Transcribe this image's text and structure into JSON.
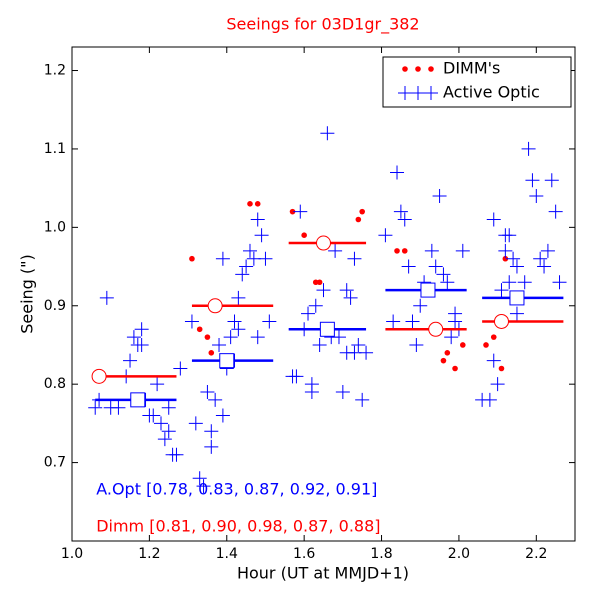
{
  "chart_data": {
    "type": "scatter",
    "title": "Seeings for 03D1gr_382",
    "title_color": "red",
    "xlabel": "Hour (UT at MMJD+1)",
    "ylabel": "Seeing (\")",
    "xlim": [
      1.0,
      2.3
    ],
    "ylim": [
      0.6,
      1.23
    ],
    "xticks": [
      {
        "value": 1,
        "label": "1.0"
      },
      1.2,
      1.4,
      1.6,
      1.8,
      {
        "value": 2,
        "label": "2.0"
      },
      2.2
    ],
    "yticks": [
      0.7,
      0.8,
      0.9,
      {
        "value": 1,
        "label": "1.0"
      },
      1.1,
      1.2
    ],
    "legend": "upper right",
    "series": [
      {
        "name": "DIMM's",
        "color": "red",
        "marker": "dot",
        "x": [
          1.07,
          1.31,
          1.33,
          1.35,
          1.36,
          1.37,
          1.46,
          1.48,
          1.57,
          1.6,
          1.63,
          1.64,
          1.65,
          1.74,
          1.75,
          1.84,
          1.86,
          1.94,
          1.96,
          1.97,
          1.99,
          2.01,
          2.07,
          2.09,
          2.11,
          2.12
        ],
        "values": [
          0.81,
          0.96,
          0.87,
          0.86,
          0.84,
          0.9,
          1.03,
          1.03,
          1.02,
          0.99,
          0.93,
          0.93,
          0.98,
          1.01,
          1.02,
          0.97,
          0.97,
          0.87,
          0.83,
          0.84,
          0.82,
          0.85,
          0.85,
          0.86,
          0.82,
          0.96
        ]
      },
      {
        "name": "Active Optic",
        "color": "blue",
        "marker": "plus",
        "x": [
          1.06,
          1.07,
          1.09,
          1.1,
          1.12,
          1.14,
          1.15,
          1.16,
          1.17,
          1.18,
          1.19,
          1.2,
          1.21,
          1.22,
          1.23,
          1.24,
          1.25,
          1.26,
          1.27,
          1.25,
          1.18,
          1.28,
          1.31,
          1.32,
          1.33,
          1.34,
          1.35,
          1.36,
          1.36,
          1.38,
          1.39,
          1.4,
          1.41,
          1.42,
          1.43,
          1.44,
          1.45,
          1.46,
          1.47,
          1.48,
          1.49,
          1.5,
          1.51,
          1.42,
          1.39,
          1.48,
          1.37,
          1.43,
          1.57,
          1.58,
          1.59,
          1.6,
          1.61,
          1.62,
          1.62,
          1.63,
          1.64,
          1.66,
          1.67,
          1.68,
          1.69,
          1.7,
          1.71,
          1.72,
          1.73,
          1.74,
          1.75,
          1.76,
          1.65,
          1.71,
          1.73,
          1.81,
          1.83,
          1.84,
          1.85,
          1.86,
          1.87,
          1.88,
          1.89,
          1.9,
          1.91,
          1.93,
          1.94,
          1.95,
          1.96,
          1.97,
          1.98,
          1.99,
          2.0,
          2.01,
          1.92,
          1.99,
          2.06,
          2.08,
          2.09,
          2.1,
          2.11,
          2.12,
          2.13,
          2.14,
          2.15,
          2.16,
          2.17,
          2.18,
          2.19,
          2.2,
          2.21,
          2.22,
          2.23,
          2.24,
          2.25,
          2.26,
          2.13,
          2.12,
          2.09,
          2.15
        ],
        "values": [
          0.77,
          0.78,
          0.91,
          0.77,
          0.77,
          0.81,
          0.83,
          0.86,
          0.85,
          0.87,
          0.78,
          0.76,
          0.76,
          0.8,
          0.75,
          0.73,
          0.74,
          0.71,
          0.71,
          0.77,
          0.85,
          0.82,
          0.88,
          0.75,
          0.68,
          0.67,
          0.79,
          0.74,
          0.72,
          0.85,
          0.96,
          0.82,
          0.86,
          0.88,
          0.91,
          0.94,
          0.95,
          0.97,
          0.96,
          1.01,
          0.99,
          0.96,
          0.88,
          0.83,
          0.76,
          0.86,
          0.78,
          0.87,
          0.81,
          0.81,
          1.02,
          0.87,
          0.89,
          0.79,
          0.8,
          0.9,
          0.85,
          1.12,
          0.86,
          0.97,
          0.86,
          0.79,
          0.84,
          0.91,
          0.84,
          0.85,
          0.78,
          0.84,
          0.92,
          0.92,
          0.96,
          0.99,
          0.88,
          1.07,
          1.02,
          1.01,
          0.95,
          0.88,
          0.85,
          0.9,
          0.93,
          0.97,
          0.95,
          1.04,
          0.94,
          0.93,
          0.86,
          0.88,
          0.87,
          0.97,
          0.92,
          0.89,
          0.78,
          0.78,
          0.83,
          0.8,
          0.92,
          0.99,
          0.99,
          0.96,
          0.95,
          0.91,
          0.93,
          1.1,
          1.06,
          1.04,
          0.96,
          0.95,
          0.97,
          1.06,
          1.02,
          0.93,
          0.93,
          0.97,
          1.01,
          0.89
        ]
      }
    ],
    "binned": [
      {
        "color": "red",
        "marker": "circle",
        "x": [
          1.07,
          1.37,
          1.65,
          1.94,
          2.11
        ],
        "xmin": [
          1.06,
          1.31,
          1.56,
          1.81,
          2.06
        ],
        "xmax": [
          1.27,
          1.52,
          1.76,
          2.02,
          2.27
        ],
        "values": [
          0.81,
          0.9,
          0.98,
          0.87,
          0.88
        ]
      },
      {
        "color": "blue",
        "marker": "square",
        "x": [
          1.17,
          1.4,
          1.66,
          1.92,
          2.15
        ],
        "xmin": [
          1.06,
          1.31,
          1.56,
          1.81,
          2.06
        ],
        "xmax": [
          1.27,
          1.52,
          1.76,
          2.02,
          2.27
        ],
        "values": [
          0.78,
          0.83,
          0.87,
          0.92,
          0.91
        ]
      }
    ],
    "annotations": [
      {
        "text": "A.Opt [0.78, 0.83, 0.87, 0.92, 0.91]",
        "color": "blue",
        "x": 1.06,
        "y": 0.665
      },
      {
        "text": "Dimm [0.81, 0.90, 0.98, 0.87, 0.88]",
        "color": "red",
        "x": 1.06,
        "y": 0.618
      }
    ]
  }
}
